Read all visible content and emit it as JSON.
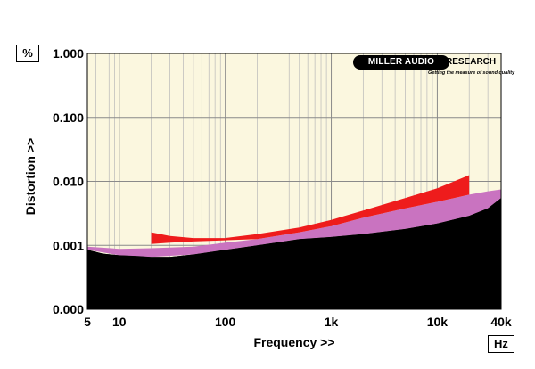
{
  "chart_data": {
    "type": "area",
    "title": "",
    "xlabel": "Frequency >>",
    "ylabel": "Distortion >>",
    "x_unit": "Hz",
    "y_unit": "%",
    "x_scale": "log",
    "y_scale": "log",
    "xlim": [
      5,
      40000
    ],
    "ylim": [
      0.0001,
      1
    ],
    "x_ticks": [
      {
        "value": 5,
        "label": "5"
      },
      {
        "value": 10,
        "label": "10"
      },
      {
        "value": 100,
        "label": "100"
      },
      {
        "value": 1000,
        "label": "1k"
      },
      {
        "value": 10000,
        "label": "10k"
      },
      {
        "value": 40000,
        "label": "40k"
      }
    ],
    "y_ticks": [
      {
        "value": 0.0001,
        "label": "0.000"
      },
      {
        "value": 0.001,
        "label": "0.001"
      },
      {
        "value": 0.01,
        "label": "0.010"
      },
      {
        "value": 0.1,
        "label": "0.100"
      },
      {
        "value": 1,
        "label": "1.000"
      }
    ],
    "grid": true,
    "colors": {
      "plot_background": "#fbf7df",
      "grid": "#b8b8b8",
      "black_series": "#000000",
      "pink_series": "#c973c0",
      "red_series": "#ee1c1c"
    },
    "series": [
      {
        "color": "#000000",
        "type": "area",
        "x": [
          5,
          7,
          10,
          15,
          20,
          30,
          50,
          100,
          200,
          500,
          1000,
          2000,
          5000,
          10000,
          20000,
          30000,
          40000
        ],
        "y": [
          0.00085,
          0.00074,
          0.0007,
          0.00068,
          0.00066,
          0.00066,
          0.00072,
          0.00085,
          0.001,
          0.00125,
          0.00135,
          0.0015,
          0.0018,
          0.0022,
          0.0029,
          0.0038,
          0.0055
        ]
      },
      {
        "color": "#c973c0",
        "type": "band",
        "x": [
          5,
          10,
          20,
          50,
          100,
          200,
          500,
          1000,
          2000,
          5000,
          10000,
          20000,
          30000,
          40000
        ],
        "y_low": [
          0.00085,
          0.0007,
          0.00066,
          0.00072,
          0.00085,
          0.001,
          0.00125,
          0.00135,
          0.0015,
          0.0018,
          0.0022,
          0.0029,
          0.0038,
          0.0055
        ],
        "y_high": [
          0.00095,
          0.00088,
          0.0009,
          0.00095,
          0.0011,
          0.00125,
          0.0016,
          0.002,
          0.0027,
          0.0038,
          0.0048,
          0.0062,
          0.007,
          0.0075
        ]
      },
      {
        "color": "#ee1c1c",
        "type": "band",
        "x": [
          20,
          30,
          50,
          100,
          200,
          500,
          1000,
          2000,
          5000,
          10000,
          20000
        ],
        "y_low": [
          0.00105,
          0.0011,
          0.00115,
          0.0012,
          0.00125,
          0.0016,
          0.002,
          0.0027,
          0.0038,
          0.0048,
          0.0062
        ],
        "y_high": [
          0.0016,
          0.0014,
          0.0013,
          0.0013,
          0.0015,
          0.0019,
          0.0025,
          0.0035,
          0.0055,
          0.0078,
          0.0125
        ]
      }
    ]
  },
  "logo": {
    "text_part1": "MILLER AUDIO",
    "text_part2": "RESEARCH",
    "tagline": "Getting the measure of sound quality"
  }
}
